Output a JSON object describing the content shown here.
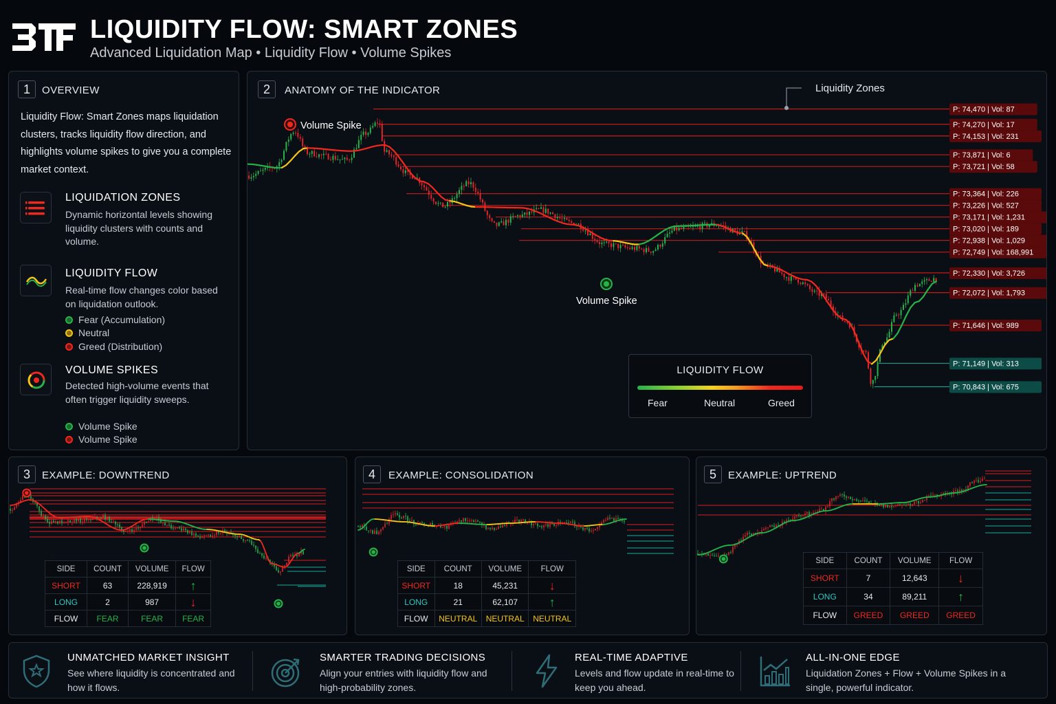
{
  "header": {
    "logo": "3TF",
    "title": "LIQUIDITY FLOW: SMART ZONES",
    "subtitle": "Advanced Liquidation Map • Liquidity Flow • Volume Spikes"
  },
  "overview": {
    "number": "1",
    "title": "OVERVIEW",
    "description": "Liquidity Flow: Smart Zones maps liquidation clusters, tracks liquidity flow direction, and highlights volume spikes to give you a complete market context.",
    "features": [
      {
        "icon": "zones-icon",
        "title": "LIQUIDATION ZONES",
        "description": "Dynamic horizontal levels showing liquidity clusters with counts and volume."
      },
      {
        "icon": "flow-wave-icon",
        "title": "LIQUIDITY FLOW",
        "description": "Real-time flow changes color based on liquidation outlook.",
        "legend": [
          {
            "label": "Fear (Accumulation)",
            "color": "#27b24a"
          },
          {
            "label": "Neutral",
            "color": "#f5c518"
          },
          {
            "label": "Greed (Distribution)",
            "color": "#f0281e"
          }
        ]
      },
      {
        "icon": "spike-ring-icon",
        "title": "VOLUME SPIKES",
        "description": "Detected high-volume events that often trigger liquidity sweeps.",
        "legend": [
          {
            "label": "Volume Spike",
            "color": "#27b24a"
          },
          {
            "label": "Volume Spike",
            "color": "#f0281e"
          }
        ]
      }
    ]
  },
  "anatomy": {
    "number": "2",
    "title": "ANATOMY OF THE INDICATOR",
    "zones_label": "Liquidity Zones",
    "spike_label_top": "Volume Spike",
    "spike_label_bottom": "Volume Spike",
    "flow_legend": {
      "title": "LIQUIDITY FLOW",
      "labels": [
        "Fear",
        "Neutral",
        "Greed"
      ]
    }
  },
  "chart_data": [
    {
      "type": "line",
      "title": "ANATOMY OF THE INDICATOR",
      "ylim": [
        70650,
        74600
      ],
      "price_path": [
        [
          0,
          73600
        ],
        [
          0.04,
          73710
        ],
        [
          0.07,
          74180
        ],
        [
          0.09,
          73900
        ],
        [
          0.12,
          73850
        ],
        [
          0.15,
          73800
        ],
        [
          0.18,
          74150
        ],
        [
          0.2,
          74300
        ],
        [
          0.21,
          73900
        ],
        [
          0.25,
          73600
        ],
        [
          0.3,
          73200
        ],
        [
          0.34,
          73500
        ],
        [
          0.38,
          72950
        ],
        [
          0.42,
          73080
        ],
        [
          0.45,
          73150
        ],
        [
          0.5,
          72980
        ],
        [
          0.55,
          72700
        ],
        [
          0.59,
          72650
        ],
        [
          0.62,
          72620
        ],
        [
          0.66,
          72900
        ],
        [
          0.72,
          72960
        ],
        [
          0.76,
          72850
        ],
        [
          0.8,
          72400
        ],
        [
          0.84,
          72250
        ],
        [
          0.88,
          72050
        ],
        [
          0.92,
          71700
        ],
        [
          0.95,
          71300
        ],
        [
          0.96,
          70900
        ],
        [
          0.98,
          71450
        ],
        [
          1.0,
          71800
        ],
        [
          1.03,
          72180
        ],
        [
          1.06,
          72260
        ]
      ],
      "flow_path": [
        [
          0.0,
          73750,
          "fear"
        ],
        [
          0.05,
          73700,
          "neutral"
        ],
        [
          0.09,
          73960,
          "greed"
        ],
        [
          0.16,
          73920,
          "greed"
        ],
        [
          0.21,
          74000,
          "greed"
        ],
        [
          0.27,
          73520,
          "greed"
        ],
        [
          0.31,
          73270,
          "neutral"
        ],
        [
          0.35,
          73190,
          "greed"
        ],
        [
          0.42,
          73180,
          "greed"
        ],
        [
          0.5,
          72960,
          "greed"
        ],
        [
          0.56,
          72750,
          "neutral"
        ],
        [
          0.6,
          72700,
          "fear"
        ],
        [
          0.66,
          72940,
          "fear"
        ],
        [
          0.72,
          72960,
          "greed"
        ],
        [
          0.76,
          72850,
          "neutral"
        ],
        [
          0.8,
          72420,
          "greed"
        ],
        [
          0.86,
          72240,
          "greed"
        ],
        [
          0.92,
          71720,
          "greed"
        ],
        [
          0.96,
          71140,
          "neutral"
        ],
        [
          0.99,
          71460,
          "fear"
        ],
        [
          1.03,
          71950,
          "fear"
        ],
        [
          1.06,
          72220,
          "fear"
        ]
      ],
      "zones": [
        {
          "price": 74470,
          "vol": 87,
          "side": "short",
          "label": "P: 74,470 | Vol: 87"
        },
        {
          "price": 74270,
          "vol": 17,
          "side": "short",
          "label": "P: 74,270 | Vol: 17"
        },
        {
          "price": 74153,
          "vol": 231,
          "side": "short",
          "label": "P: 74,153 | Vol: 231"
        },
        {
          "price": 73871,
          "vol": 6,
          "side": "short",
          "label": "P: 73,871 | Vol: 6"
        },
        {
          "price": 73721,
          "vol": 58,
          "side": "short",
          "label": "P: 73,721 | Vol: 58"
        },
        {
          "price": 73364,
          "vol": 226,
          "side": "short",
          "label": "P: 73,364 | Vol: 226"
        },
        {
          "price": 73226,
          "vol": 527,
          "side": "short",
          "label": "P: 73,226 | Vol: 527"
        },
        {
          "price": 73171,
          "vol": 1231,
          "side": "short",
          "label": "P: 73,171 | Vol: 1,231"
        },
        {
          "price": 73020,
          "vol": 189,
          "side": "short",
          "label": "P: 73,020 | Vol: 189"
        },
        {
          "price": 72938,
          "vol": 1029,
          "side": "short",
          "label": "P: 72,938 | Vol: 1,029"
        },
        {
          "price": 72749,
          "vol": 168991,
          "side": "short",
          "label": "P: 72,749 | Vol: 168,991"
        },
        {
          "price": 72330,
          "vol": 3726,
          "side": "short",
          "label": "P: 72,330 | Vol: 3,726"
        },
        {
          "price": 72072,
          "vol": 1793,
          "side": "short",
          "label": "P: 72,072 | Vol: 1,793"
        },
        {
          "price": 71646,
          "vol": 989,
          "side": "short",
          "label": "P: 71,646 | Vol: 989"
        },
        {
          "price": 71149,
          "vol": 313,
          "side": "long",
          "label": "P: 71,149 | Vol: 313"
        },
        {
          "price": 70843,
          "vol": 675,
          "side": "long",
          "label": "P: 70,843 | Vol: 675"
        }
      ],
      "volume_spikes": [
        {
          "x": 0.18,
          "price": 74350,
          "side": "short"
        },
        {
          "x": 0.6,
          "price": 72620,
          "side": "long"
        }
      ],
      "legend": {
        "title": "LIQUIDITY FLOW",
        "entries": [
          "Fear",
          "Neutral",
          "Greed"
        ]
      }
    },
    {
      "type": "table",
      "title": "EXAMPLE: DOWNTREND",
      "columns": [
        "SIDE",
        "COUNT",
        "VOLUME",
        "FLOW"
      ],
      "rows": [
        {
          "side": "SHORT",
          "count": "63",
          "volume": "228,919",
          "flow": "up"
        },
        {
          "side": "LONG",
          "count": "2",
          "volume": "987",
          "flow": "down"
        },
        {
          "side": "FLOW",
          "count": "FEAR",
          "volume": "FEAR",
          "flow": "FEAR"
        }
      ]
    },
    {
      "type": "table",
      "title": "EXAMPLE: CONSOLIDATION",
      "columns": [
        "SIDE",
        "COUNT",
        "VOLUME",
        "FLOW"
      ],
      "rows": [
        {
          "side": "SHORT",
          "count": "18",
          "volume": "45,231",
          "flow": "down"
        },
        {
          "side": "LONG",
          "count": "21",
          "volume": "62,107",
          "flow": "up"
        },
        {
          "side": "FLOW",
          "count": "NEUTRAL",
          "volume": "NEUTRAL",
          "flow": "NEUTRAL"
        }
      ]
    },
    {
      "type": "table",
      "title": "EXAMPLE: UPTREND",
      "columns": [
        "SIDE",
        "COUNT",
        "VOLUME",
        "FLOW"
      ],
      "rows": [
        {
          "side": "SHORT",
          "count": "7",
          "volume": "12,643",
          "flow": "down"
        },
        {
          "side": "LONG",
          "count": "34",
          "volume": "89,211",
          "flow": "up"
        },
        {
          "side": "FLOW",
          "count": "GREED",
          "volume": "GREED",
          "flow": "GREED"
        }
      ]
    }
  ],
  "examples": {
    "downtrend": {
      "number": "3",
      "title": "EXAMPLE: DOWNTREND",
      "price_path": [
        [
          0,
          55
        ],
        [
          0.05,
          35
        ],
        [
          0.12,
          75
        ],
        [
          0.2,
          72
        ],
        [
          0.28,
          67
        ],
        [
          0.36,
          88
        ],
        [
          0.44,
          70
        ],
        [
          0.5,
          82
        ],
        [
          0.58,
          95
        ],
        [
          0.66,
          88
        ],
        [
          0.72,
          100
        ],
        [
          0.78,
          125
        ],
        [
          0.82,
          145
        ],
        [
          0.86,
          125
        ],
        [
          0.9,
          118
        ]
      ],
      "flow_path": [
        [
          0,
          50,
          "greed"
        ],
        [
          0.06,
          42,
          "greed"
        ],
        [
          0.15,
          68,
          "greed"
        ],
        [
          0.24,
          66,
          "greed"
        ],
        [
          0.34,
          86,
          "greed"
        ],
        [
          0.42,
          70,
          "fear"
        ],
        [
          0.5,
          73,
          "fear"
        ],
        [
          0.6,
          85,
          "neutral"
        ],
        [
          0.7,
          92,
          "neutral"
        ],
        [
          0.76,
          100,
          "greed"
        ],
        [
          0.8,
          135,
          "greed"
        ],
        [
          0.84,
          140,
          "greed"
        ],
        [
          0.88,
          120,
          "fear"
        ],
        [
          0.9,
          114,
          "fear"
        ]
      ],
      "spikes": [
        {
          "x": 0.05,
          "y": 32,
          "side": "short"
        },
        {
          "x": 0.41,
          "y": 112,
          "side": "long"
        },
        {
          "x": 0.82,
          "y": 193,
          "side": "long"
        }
      ]
    },
    "consolidation": {
      "number": "4",
      "title": "EXAMPLE: CONSOLIDATION",
      "price_path": [
        [
          0,
          82
        ],
        [
          0.06,
          92
        ],
        [
          0.12,
          66
        ],
        [
          0.2,
          78
        ],
        [
          0.28,
          84
        ],
        [
          0.36,
          72
        ],
        [
          0.44,
          86
        ],
        [
          0.52,
          74
        ],
        [
          0.6,
          82
        ],
        [
          0.68,
          76
        ],
        [
          0.76,
          88
        ],
        [
          0.82,
          70
        ],
        [
          0.88,
          78
        ]
      ],
      "flow_path": [
        [
          0,
          88,
          "fear"
        ],
        [
          0.05,
          72,
          "neutral"
        ],
        [
          0.15,
          76,
          "neutral"
        ],
        [
          0.25,
          82,
          "greed"
        ],
        [
          0.33,
          78,
          "fear"
        ],
        [
          0.42,
          80,
          "neutral"
        ],
        [
          0.5,
          78,
          "neutral"
        ],
        [
          0.58,
          76,
          "greed"
        ],
        [
          0.66,
          78,
          "greed"
        ],
        [
          0.74,
          82,
          "neutral"
        ],
        [
          0.8,
          80,
          "fear"
        ],
        [
          0.88,
          72,
          "fear"
        ]
      ],
      "spikes": [
        {
          "x": 0.05,
          "y": 120,
          "side": "long"
        }
      ]
    },
    "uptrend": {
      "number": "5",
      "title": "EXAMPLE: UPTREND",
      "price_path": [
        [
          0,
          140
        ],
        [
          0.08,
          142
        ],
        [
          0.16,
          112
        ],
        [
          0.24,
          100
        ],
        [
          0.32,
          84
        ],
        [
          0.38,
          78
        ],
        [
          0.44,
          56
        ],
        [
          0.52,
          64
        ],
        [
          0.6,
          72
        ],
        [
          0.66,
          68
        ],
        [
          0.74,
          56
        ],
        [
          0.82,
          50
        ],
        [
          0.86,
          36
        ],
        [
          0.9,
          28
        ]
      ],
      "flow_path": [
        [
          0,
          142,
          "fear"
        ],
        [
          0.1,
          128,
          "fear"
        ],
        [
          0.2,
          110,
          "fear"
        ],
        [
          0.3,
          92,
          "fear"
        ],
        [
          0.4,
          78,
          "fear"
        ],
        [
          0.48,
          68,
          "neutral"
        ],
        [
          0.56,
          68,
          "fear"
        ],
        [
          0.64,
          66,
          "fear"
        ],
        [
          0.72,
          58,
          "fear"
        ],
        [
          0.8,
          52,
          "fear"
        ],
        [
          0.9,
          40,
          "fear"
        ]
      ],
      "spikes": [
        {
          "x": 0.08,
          "y": 148,
          "side": "long"
        }
      ]
    }
  },
  "bottom": [
    {
      "icon": "shield-icon",
      "title": "UNMATCHED MARKET INSIGHT",
      "description": "See where liquidity is concentrated and how it flows."
    },
    {
      "icon": "target-icon",
      "title": "SMARTER TRADING DECISIONS",
      "description": "Align your entries with liquidity flow and high-probability zones."
    },
    {
      "icon": "lightning-icon",
      "title": "REAL-TIME ADAPTIVE",
      "description": "Levels and flow update in real-time to keep you ahead."
    },
    {
      "icon": "bar-chart-icon",
      "title": "ALL-IN-ONE EDGE",
      "description": "Liquidation Zones + Flow + Volume Spikes in a single, powerful indicator."
    }
  ],
  "colors": {
    "fear": "#27b24a",
    "neutral": "#f5c518",
    "greed": "#f0281e",
    "short_zone": "#d81e1e",
    "long_zone": "#1ea99a",
    "background": "#05080c",
    "panel": "#0a0f15"
  }
}
